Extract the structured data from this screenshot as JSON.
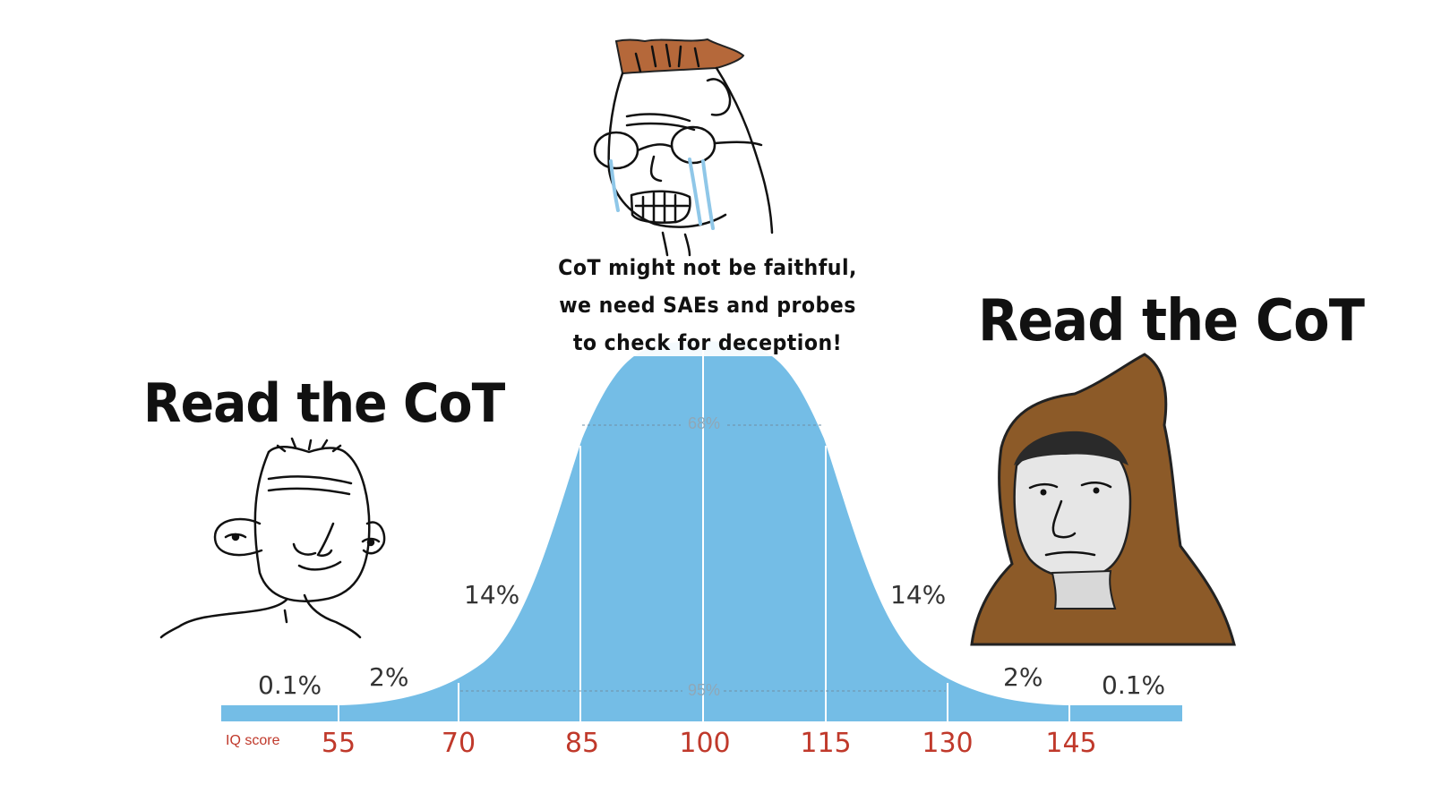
{
  "captions": {
    "left": "Read the CoT",
    "right": "Read the CoT",
    "middle": [
      "CoT might not be faithful,",
      "we need SAEs and probes",
      "to check for deception!"
    ]
  },
  "curve": {
    "axis_title": "IQ score",
    "ticks": [
      "55",
      "70",
      "85",
      "100",
      "115",
      "130",
      "145"
    ],
    "band_labels": {
      "left_tail": "0.1%",
      "left_outer": "2%",
      "left_mid": "14%",
      "right_mid": "14%",
      "right_outer": "2%",
      "right_tail": "0.1%",
      "inner": "68%",
      "outer": "95%"
    }
  },
  "colors": {
    "curve_fill": "#74bde6",
    "tick_text": "#c0392b",
    "caption_text": "#111111",
    "hood": "#8c5a28",
    "hair": "#b5683a"
  },
  "characters": [
    "wojak-simple",
    "wojak-crying-glasses",
    "wojak-hooded-monk"
  ]
}
